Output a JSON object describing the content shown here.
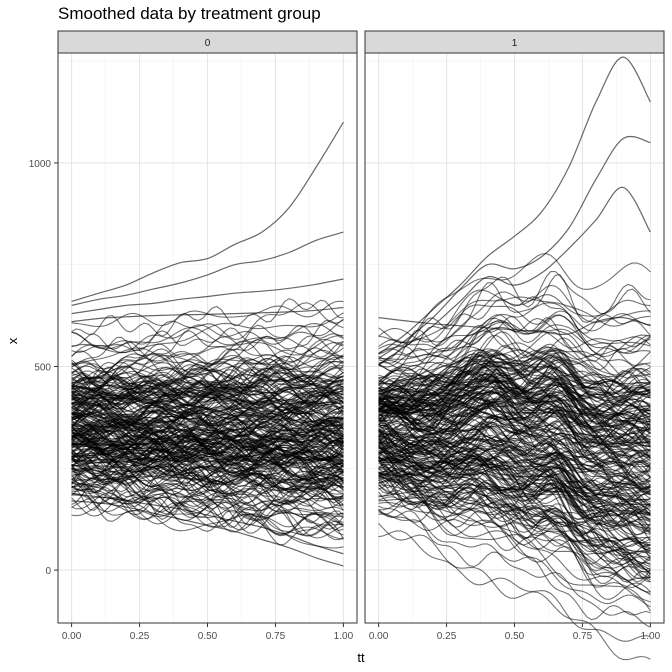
{
  "chart_data": {
    "type": "line",
    "title": "Smoothed data by treatment group",
    "xlabel": "tt",
    "ylabel": "x",
    "xlim": [
      -0.05,
      1.05
    ],
    "ylim": [
      -130,
      1270
    ],
    "x_ticks": [
      0.0,
      0.25,
      0.5,
      0.75,
      1.0
    ],
    "x_tick_labels": [
      "0.00",
      "0.25",
      "0.50",
      "0.75",
      "1.00"
    ],
    "y_ticks": [
      0,
      500,
      1000
    ],
    "y_tick_labels": [
      "0",
      "500",
      "1000"
    ],
    "grid": true,
    "legend": "none",
    "line_color": "#000000",
    "panels": [
      {
        "label": "0",
        "n_lines": 260,
        "x": [
          0.0,
          0.1,
          0.2,
          0.3,
          0.4,
          0.5,
          0.6,
          0.7,
          0.8,
          0.9,
          1.0
        ],
        "series": [
          {
            "values": [
              660,
              680,
              700,
              730,
              755,
              765,
              800,
              830,
              890,
              990,
              1100
            ]
          },
          {
            "values": [
              650,
              665,
              675,
              690,
              705,
              725,
              750,
              760,
              780,
              810,
              830
            ]
          },
          {
            "values": [
              630,
              640,
              650,
              655,
              665,
              672,
              680,
              685,
              692,
              702,
              715
            ]
          },
          {
            "values": [
              610,
              618,
              622,
              625,
              627,
              628,
              630,
              632,
              634,
              638,
              645
            ]
          },
          {
            "values": [
              170,
              165,
              155,
              140,
              125,
              110,
              95,
              75,
              55,
              30,
              10
            ]
          },
          {
            "values": [
              185,
              180,
              170,
              160,
              150,
              135,
              120,
              105,
              85,
              60,
              40
            ]
          }
        ],
        "bulk": {
          "center_start": 350,
          "center_end": 330,
          "sd_start": 95,
          "sd_end": 125
        }
      },
      {
        "label": "1",
        "n_lines": 260,
        "x": [
          0.0,
          0.1,
          0.2,
          0.3,
          0.4,
          0.5,
          0.6,
          0.7,
          0.8,
          0.9,
          1.0
        ],
        "series": [
          {
            "values": [
              530,
              580,
              640,
              700,
              770,
              820,
              880,
              990,
              1150,
              1260,
              1150
            ]
          },
          {
            "values": [
              520,
              565,
              620,
              690,
              750,
              740,
              770,
              840,
              960,
              1060,
              1050
            ]
          },
          {
            "values": [
              505,
              550,
              600,
              660,
              720,
              700,
              730,
              790,
              860,
              940,
              830
            ]
          },
          {
            "values": [
              620,
              612,
              605,
              600,
              595,
              590,
              585,
              580,
              610,
              620,
              600
            ]
          },
          {
            "values": [
              180,
              190,
              200,
              210,
              200,
              150,
              150,
              120,
              90,
              50,
              -10
            ]
          },
          {
            "values": [
              170,
              175,
              180,
              175,
              160,
              120,
              100,
              80,
              40,
              -20,
              -60
            ]
          }
        ],
        "bulk": {
          "center_start": 360,
          "center_end": 280,
          "sd_start": 90,
          "sd_end": 170
        }
      }
    ]
  }
}
